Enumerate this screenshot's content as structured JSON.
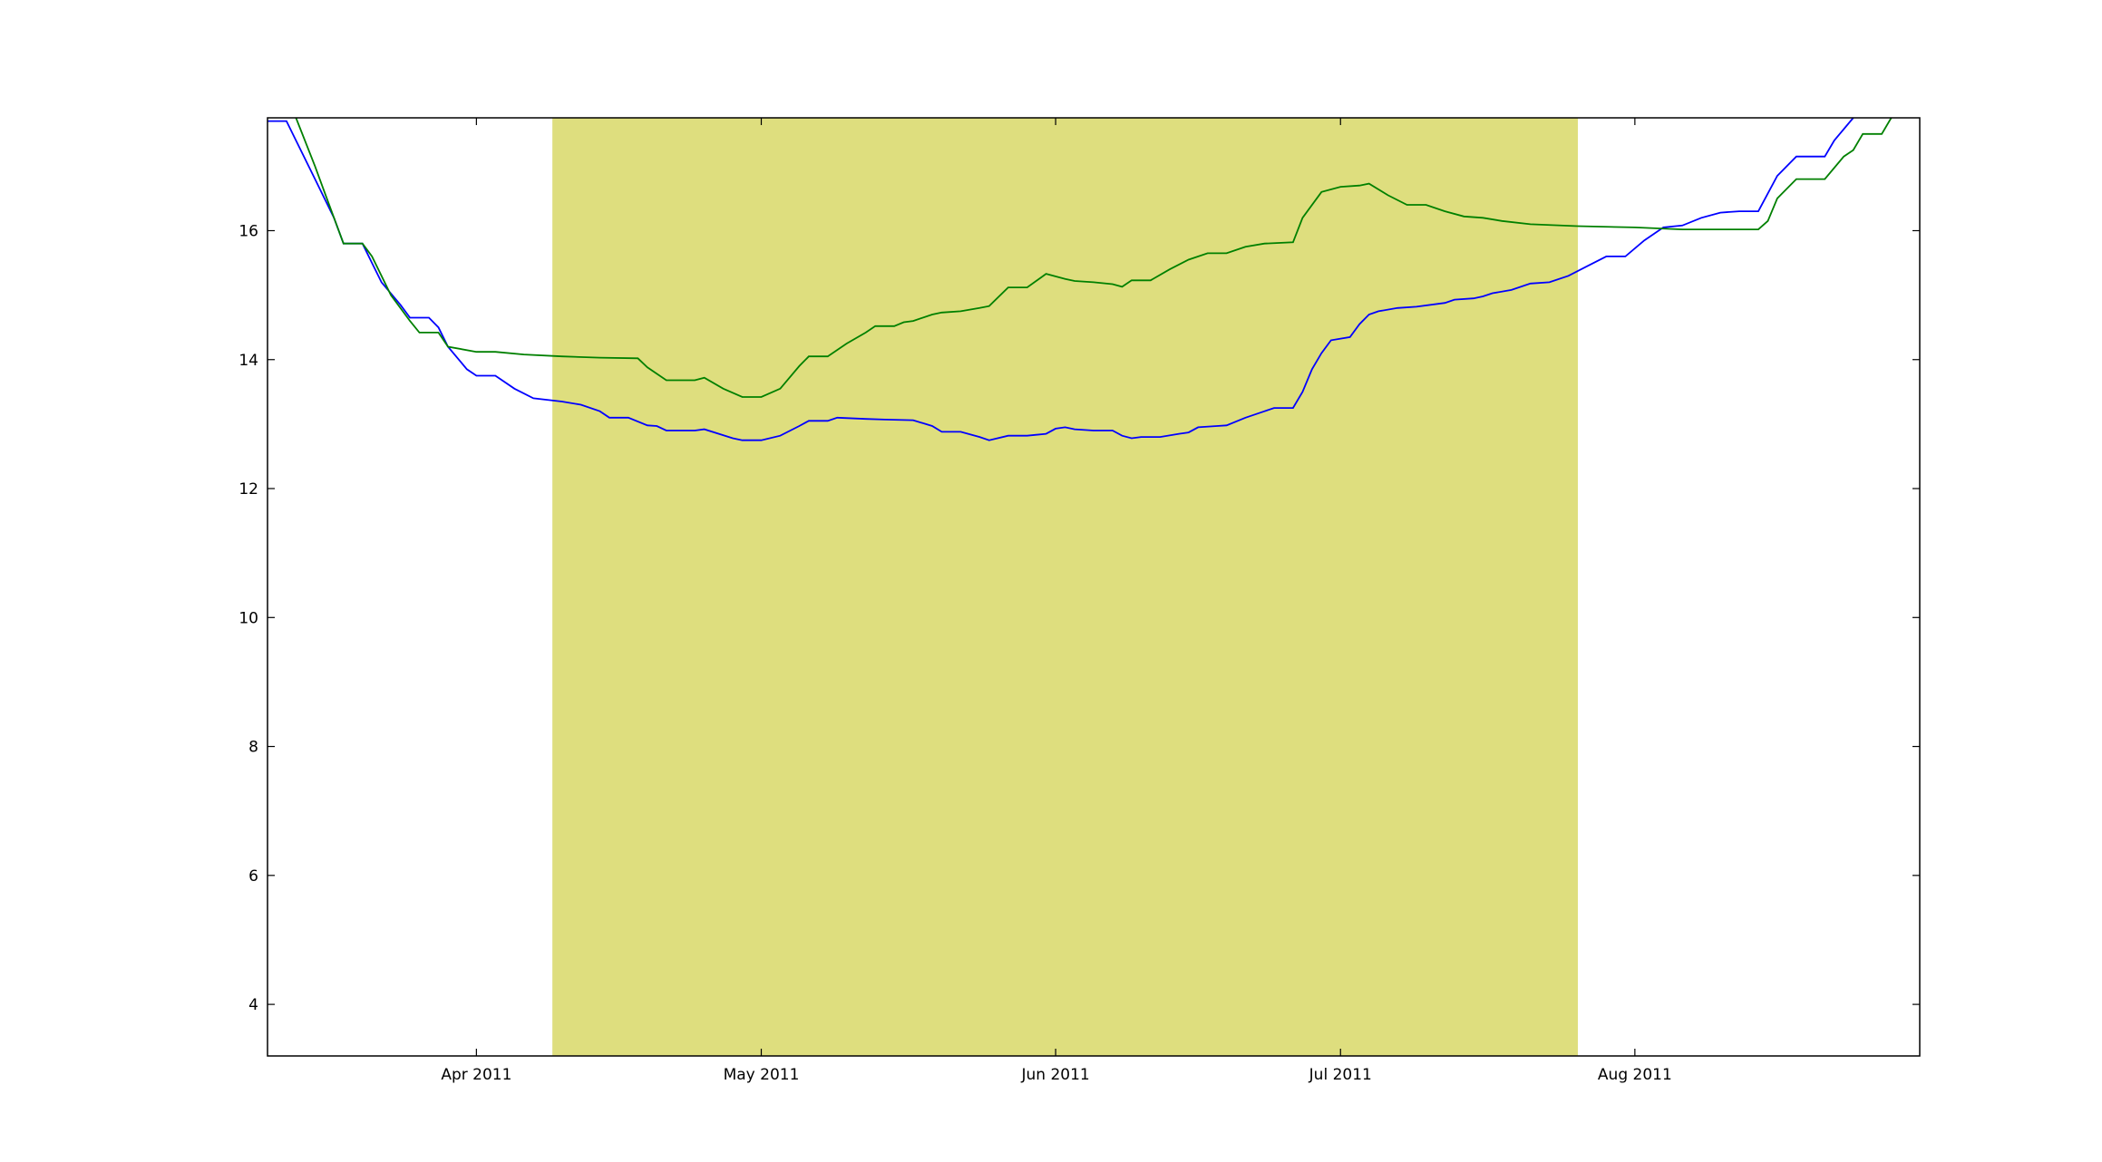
{
  "chart_data": {
    "type": "line",
    "title": "",
    "xlabel": "",
    "ylabel": "",
    "x_axis_type": "date",
    "xlim": [
      "2011-03-10",
      "2011-08-31"
    ],
    "ylim": [
      3.2,
      17.75
    ],
    "grid": false,
    "x_ticks": [
      {
        "date": "2011-04-01",
        "label": "Apr 2011"
      },
      {
        "date": "2011-05-01",
        "label": "May 2011"
      },
      {
        "date": "2011-06-01",
        "label": "Jun 2011"
      },
      {
        "date": "2011-07-01",
        "label": "Jul 2011"
      },
      {
        "date": "2011-08-01",
        "label": "Aug 2011"
      }
    ],
    "y_ticks": [
      {
        "value": 4,
        "label": "4"
      },
      {
        "value": 6,
        "label": "6"
      },
      {
        "value": 8,
        "label": "8"
      },
      {
        "value": 10,
        "label": "10"
      },
      {
        "value": 12,
        "label": "12"
      },
      {
        "value": 14,
        "label": "14"
      },
      {
        "value": 16,
        "label": "16"
      }
    ],
    "shaded_region": {
      "from": "2011-04-09",
      "to": "2011-07-26",
      "color": "#dede7e"
    },
    "series": [
      {
        "color": "#0000ff",
        "points": [
          [
            "2011-03-10",
            17.7
          ],
          [
            "2011-03-12",
            17.7
          ],
          [
            "2011-03-15",
            16.8
          ],
          [
            "2011-03-17",
            16.2
          ],
          [
            "2011-03-18",
            15.8
          ],
          [
            "2011-03-20",
            15.8
          ],
          [
            "2011-03-21",
            15.5
          ],
          [
            "2011-03-22",
            15.2
          ],
          [
            "2011-03-24",
            14.85
          ],
          [
            "2011-03-25",
            14.65
          ],
          [
            "2011-03-27",
            14.65
          ],
          [
            "2011-03-28",
            14.5
          ],
          [
            "2011-03-29",
            14.2
          ],
          [
            "2011-03-31",
            13.85
          ],
          [
            "2011-04-01",
            13.75
          ],
          [
            "2011-04-03",
            13.75
          ],
          [
            "2011-04-05",
            13.55
          ],
          [
            "2011-04-07",
            13.4
          ],
          [
            "2011-04-10",
            13.35
          ],
          [
            "2011-04-12",
            13.3
          ],
          [
            "2011-04-14",
            13.2
          ],
          [
            "2011-04-15",
            13.1
          ],
          [
            "2011-04-17",
            13.1
          ],
          [
            "2011-04-19",
            12.98
          ],
          [
            "2011-04-20",
            12.97
          ],
          [
            "2011-04-21",
            12.9
          ],
          [
            "2011-04-24",
            12.9
          ],
          [
            "2011-04-25",
            12.92
          ],
          [
            "2011-04-28",
            12.78
          ],
          [
            "2011-04-29",
            12.75
          ],
          [
            "2011-05-01",
            12.75
          ],
          [
            "2011-05-03",
            12.82
          ],
          [
            "2011-05-05",
            12.97
          ],
          [
            "2011-05-06",
            13.05
          ],
          [
            "2011-05-08",
            13.05
          ],
          [
            "2011-05-09",
            13.1
          ],
          [
            "2011-05-12",
            13.08
          ],
          [
            "2011-05-14",
            13.07
          ],
          [
            "2011-05-17",
            13.06
          ],
          [
            "2011-05-19",
            12.97
          ],
          [
            "2011-05-20",
            12.88
          ],
          [
            "2011-05-22",
            12.88
          ],
          [
            "2011-05-24",
            12.8
          ],
          [
            "2011-05-25",
            12.75
          ],
          [
            "2011-05-27",
            12.82
          ],
          [
            "2011-05-29",
            12.82
          ],
          [
            "2011-05-31",
            12.85
          ],
          [
            "2011-06-01",
            12.93
          ],
          [
            "2011-06-02",
            12.95
          ],
          [
            "2011-06-03",
            12.92
          ],
          [
            "2011-06-05",
            12.9
          ],
          [
            "2011-06-06",
            12.9
          ],
          [
            "2011-06-07",
            12.9
          ],
          [
            "2011-06-08",
            12.82
          ],
          [
            "2011-06-09",
            12.78
          ],
          [
            "2011-06-10",
            12.8
          ],
          [
            "2011-06-12",
            12.8
          ],
          [
            "2011-06-14",
            12.85
          ],
          [
            "2011-06-15",
            12.87
          ],
          [
            "2011-06-16",
            12.95
          ],
          [
            "2011-06-18",
            12.97
          ],
          [
            "2011-06-19",
            12.98
          ],
          [
            "2011-06-21",
            13.1
          ],
          [
            "2011-06-23",
            13.2
          ],
          [
            "2011-06-24",
            13.25
          ],
          [
            "2011-06-26",
            13.25
          ],
          [
            "2011-06-27",
            13.5
          ],
          [
            "2011-06-28",
            13.85
          ],
          [
            "2011-06-29",
            14.1
          ],
          [
            "2011-06-30",
            14.3
          ],
          [
            "2011-07-02",
            14.35
          ],
          [
            "2011-07-03",
            14.55
          ],
          [
            "2011-07-04",
            14.7
          ],
          [
            "2011-07-05",
            14.75
          ],
          [
            "2011-07-07",
            14.8
          ],
          [
            "2011-07-09",
            14.82
          ],
          [
            "2011-07-12",
            14.88
          ],
          [
            "2011-07-13",
            14.93
          ],
          [
            "2011-07-15",
            14.95
          ],
          [
            "2011-07-16",
            14.98
          ],
          [
            "2011-07-17",
            15.03
          ],
          [
            "2011-07-19",
            15.08
          ],
          [
            "2011-07-21",
            15.18
          ],
          [
            "2011-07-23",
            15.2
          ],
          [
            "2011-07-25",
            15.3
          ],
          [
            "2011-07-27",
            15.45
          ],
          [
            "2011-07-29",
            15.6
          ],
          [
            "2011-07-31",
            15.6
          ],
          [
            "2011-08-02",
            15.85
          ],
          [
            "2011-08-04",
            16.05
          ],
          [
            "2011-08-06",
            16.08
          ],
          [
            "2011-08-08",
            16.2
          ],
          [
            "2011-08-10",
            16.28
          ],
          [
            "2011-08-12",
            16.3
          ],
          [
            "2011-08-14",
            16.3
          ],
          [
            "2011-08-16",
            16.85
          ],
          [
            "2011-08-18",
            17.15
          ],
          [
            "2011-08-21",
            17.15
          ],
          [
            "2011-08-22",
            17.4
          ],
          [
            "2011-08-24",
            17.75
          ]
        ]
      },
      {
        "color": "#008000",
        "points": [
          [
            "2011-03-13",
            17.75
          ],
          [
            "2011-03-15",
            17.0
          ],
          [
            "2011-03-16",
            16.6
          ],
          [
            "2011-03-18",
            15.8
          ],
          [
            "2011-03-20",
            15.8
          ],
          [
            "2011-03-21",
            15.6
          ],
          [
            "2011-03-23",
            15.0
          ],
          [
            "2011-03-25",
            14.6
          ],
          [
            "2011-03-26",
            14.42
          ],
          [
            "2011-03-28",
            14.42
          ],
          [
            "2011-03-29",
            14.2
          ],
          [
            "2011-04-01",
            14.12
          ],
          [
            "2011-04-03",
            14.12
          ],
          [
            "2011-04-06",
            14.08
          ],
          [
            "2011-04-10",
            14.05
          ],
          [
            "2011-04-14",
            14.03
          ],
          [
            "2011-04-18",
            14.02
          ],
          [
            "2011-04-19",
            13.88
          ],
          [
            "2011-04-21",
            13.68
          ],
          [
            "2011-04-24",
            13.68
          ],
          [
            "2011-04-25",
            13.72
          ],
          [
            "2011-04-27",
            13.55
          ],
          [
            "2011-04-29",
            13.42
          ],
          [
            "2011-05-01",
            13.42
          ],
          [
            "2011-05-03",
            13.55
          ],
          [
            "2011-05-05",
            13.9
          ],
          [
            "2011-05-06",
            14.05
          ],
          [
            "2011-05-08",
            14.05
          ],
          [
            "2011-05-10",
            14.25
          ],
          [
            "2011-05-12",
            14.42
          ],
          [
            "2011-05-13",
            14.52
          ],
          [
            "2011-05-15",
            14.52
          ],
          [
            "2011-05-16",
            14.58
          ],
          [
            "2011-05-17",
            14.6
          ],
          [
            "2011-05-19",
            14.7
          ],
          [
            "2011-05-20",
            14.73
          ],
          [
            "2011-05-22",
            14.75
          ],
          [
            "2011-05-24",
            14.8
          ],
          [
            "2011-05-25",
            14.83
          ],
          [
            "2011-05-27",
            15.12
          ],
          [
            "2011-05-29",
            15.12
          ],
          [
            "2011-05-31",
            15.33
          ],
          [
            "2011-06-02",
            15.25
          ],
          [
            "2011-06-03",
            15.22
          ],
          [
            "2011-06-05",
            15.2
          ],
          [
            "2011-06-07",
            15.17
          ],
          [
            "2011-06-08",
            15.13
          ],
          [
            "2011-06-09",
            15.23
          ],
          [
            "2011-06-11",
            15.23
          ],
          [
            "2011-06-13",
            15.4
          ],
          [
            "2011-06-15",
            15.55
          ],
          [
            "2011-06-17",
            15.65
          ],
          [
            "2011-06-19",
            15.65
          ],
          [
            "2011-06-21",
            15.75
          ],
          [
            "2011-06-23",
            15.8
          ],
          [
            "2011-06-26",
            15.82
          ],
          [
            "2011-06-27",
            16.2
          ],
          [
            "2011-06-29",
            16.6
          ],
          [
            "2011-07-01",
            16.68
          ],
          [
            "2011-07-03",
            16.7
          ],
          [
            "2011-07-04",
            16.73
          ],
          [
            "2011-07-06",
            16.55
          ],
          [
            "2011-07-08",
            16.4
          ],
          [
            "2011-07-10",
            16.4
          ],
          [
            "2011-07-12",
            16.3
          ],
          [
            "2011-07-14",
            16.22
          ],
          [
            "2011-07-16",
            16.2
          ],
          [
            "2011-07-18",
            16.15
          ],
          [
            "2011-07-21",
            16.1
          ],
          [
            "2011-07-26",
            16.07
          ],
          [
            "2011-08-01",
            16.05
          ],
          [
            "2011-08-06",
            16.02
          ],
          [
            "2011-08-14",
            16.02
          ],
          [
            "2011-08-15",
            16.15
          ],
          [
            "2011-08-16",
            16.5
          ],
          [
            "2011-08-18",
            16.8
          ],
          [
            "2011-08-21",
            16.8
          ],
          [
            "2011-08-23",
            17.15
          ],
          [
            "2011-08-24",
            17.25
          ],
          [
            "2011-08-25",
            17.5
          ],
          [
            "2011-08-27",
            17.5
          ],
          [
            "2011-08-28",
            17.75
          ]
        ]
      }
    ]
  }
}
